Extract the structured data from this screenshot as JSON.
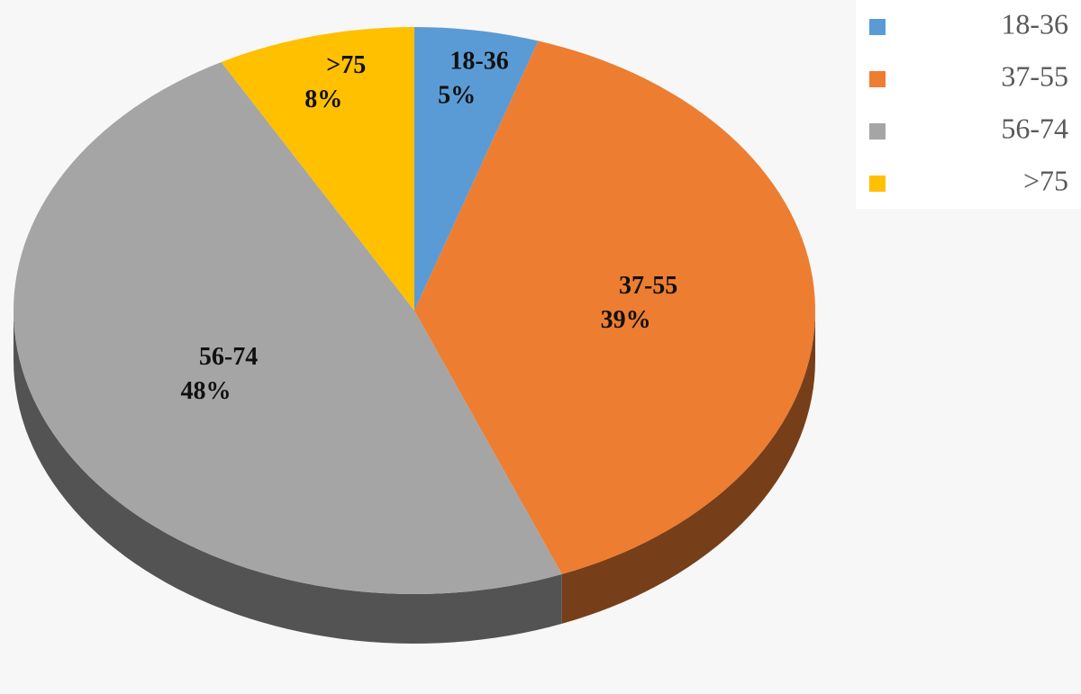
{
  "chart_data": {
    "type": "pie",
    "categories": [
      "18-36",
      "37-55",
      "56-74",
      ">75"
    ],
    "values": [
      5,
      39,
      48,
      8
    ],
    "value_labels": [
      "5%",
      "39%",
      "48%",
      "8%"
    ],
    "colors": [
      "#5b9bd5",
      "#ed7d31",
      "#a5a5a5",
      "#ffc000"
    ],
    "legend": "top-right"
  }
}
